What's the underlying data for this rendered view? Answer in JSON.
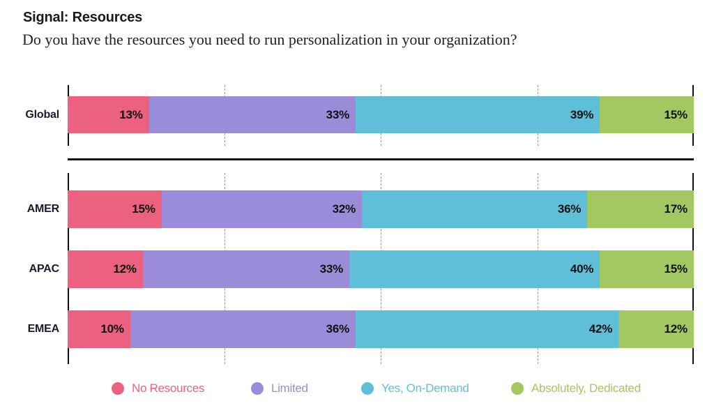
{
  "header": {
    "title": "Signal: Resources",
    "question": "Do you have the resources you need to run personalization in your organization?"
  },
  "chart_data": {
    "type": "bar",
    "orientation": "horizontal",
    "stacked": true,
    "title": "Signal: Resources",
    "subtitle": "Do you have the resources you need to run personalization in your organization?",
    "unit": "%",
    "xlim": [
      0,
      100
    ],
    "gridlines": [
      25,
      50,
      75
    ],
    "grid_style": "dashed-vertical",
    "legend_position": "bottom",
    "sections": [
      {
        "name": "global",
        "categories": [
          "Global"
        ]
      },
      {
        "name": "regions",
        "categories": [
          "AMER",
          "APAC",
          "EMEA"
        ]
      }
    ],
    "categories": [
      "Global",
      "AMER",
      "APAC",
      "EMEA"
    ],
    "series": [
      {
        "name": "No Resources",
        "color": "#EC6180",
        "values": [
          13,
          15,
          12,
          10
        ]
      },
      {
        "name": "Limited",
        "color": "#9A8CD9",
        "values": [
          33,
          32,
          33,
          36
        ]
      },
      {
        "name": "Yes, On-Demand",
        "color": "#5FBFD8",
        "values": [
          39,
          36,
          40,
          42
        ]
      },
      {
        "name": "Absolutely, Dedicated",
        "color": "#A2C861",
        "values": [
          15,
          17,
          15,
          12
        ]
      }
    ],
    "data_labels": [
      [
        "13%",
        "33%",
        "39%",
        "15%"
      ],
      [
        "15%",
        "32%",
        "36%",
        "17%"
      ],
      [
        "12%",
        "33%",
        "40%",
        "15%"
      ],
      [
        "10%",
        "36%",
        "42%",
        "12%"
      ]
    ]
  },
  "legend": {
    "items": [
      {
        "label": "No Resources",
        "color": "#EC6180"
      },
      {
        "label": "Limited",
        "color": "#9A8CD9"
      },
      {
        "label": "Yes, On-Demand",
        "color": "#5FBFD8"
      },
      {
        "label": "Absolutely, Dedicated",
        "color": "#A2C861"
      }
    ]
  }
}
